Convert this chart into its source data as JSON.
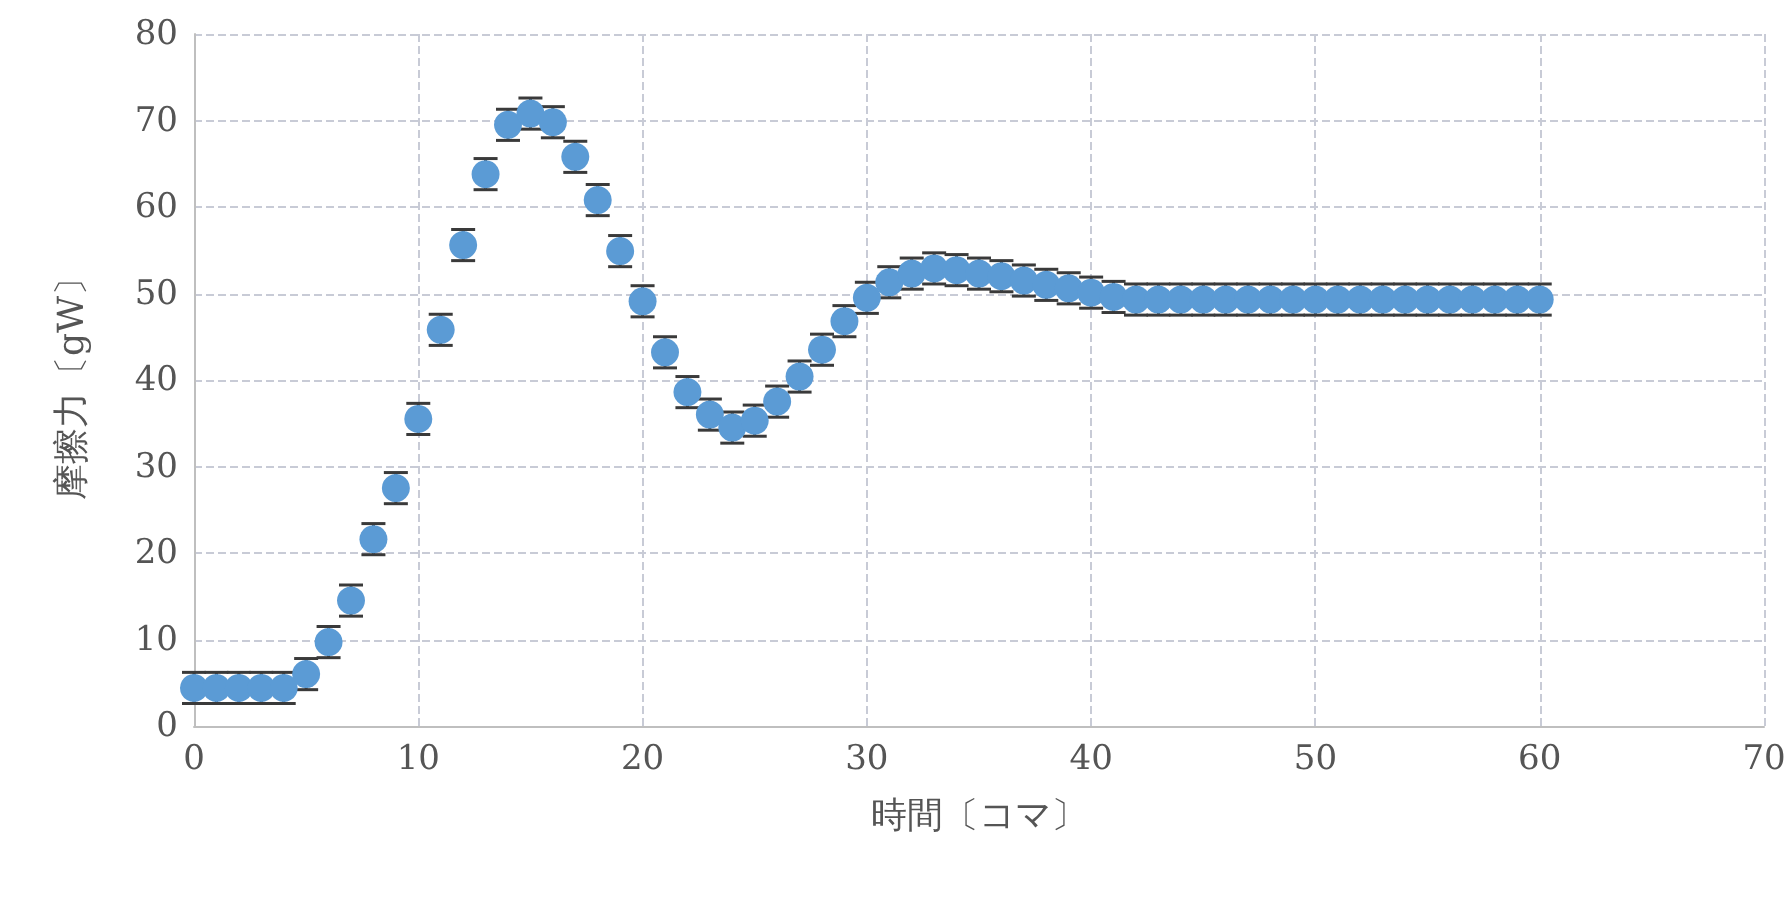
{
  "chart_data": {
    "type": "scatter",
    "xlabel": "時間〔コマ〕",
    "ylabel": "摩擦力〔gW〕",
    "x": [
      0,
      1,
      2,
      3,
      4,
      5,
      6,
      7,
      8,
      9,
      10,
      11,
      12,
      13,
      14,
      15,
      16,
      17,
      18,
      19,
      20,
      21,
      22,
      23,
      24,
      25,
      26,
      27,
      28,
      29,
      30,
      31,
      32,
      33,
      34,
      35,
      36,
      37,
      38,
      39,
      40,
      41,
      42,
      43,
      44,
      45,
      46,
      47,
      48,
      49,
      50,
      51,
      52,
      53,
      54,
      55,
      56,
      57,
      58,
      59,
      60
    ],
    "series": [
      {
        "color": "#5b9bd5",
        "values": [
          4.4,
          4.4,
          4.4,
          4.4,
          4.4,
          6,
          9.7,
          14.5,
          21.6,
          27.5,
          35.5,
          45.8,
          55.6,
          63.8,
          69.5,
          70.8,
          69.8,
          65.8,
          60.8,
          54.9,
          49.1,
          43.2,
          38.6,
          36,
          34.5,
          35.3,
          37.5,
          40.4,
          43.5,
          46.8,
          49.5,
          51.3,
          52.3,
          52.9,
          52.7,
          52.3,
          52,
          51.5,
          51,
          50.6,
          50.1,
          49.6,
          49.3,
          49.3,
          49.3,
          49.3,
          49.3,
          49.3,
          49.3,
          49.3,
          49.3,
          49.3,
          49.3,
          49.3,
          49.3,
          49.3,
          49.3,
          49.3,
          49.3,
          49.3,
          49.3
        ],
        "errors": [
          1.8,
          1.8,
          1.8,
          1.8,
          1.8,
          1.8,
          1.8,
          1.8,
          1.8,
          1.8,
          1.8,
          1.8,
          1.8,
          1.8,
          1.8,
          1.8,
          1.8,
          1.8,
          1.8,
          1.8,
          1.8,
          1.8,
          1.8,
          1.8,
          1.8,
          1.8,
          1.8,
          1.8,
          1.8,
          1.8,
          1.8,
          1.8,
          1.8,
          1.8,
          1.8,
          1.8,
          1.8,
          1.8,
          1.8,
          1.8,
          1.8,
          1.8,
          1.8,
          1.8,
          1.8,
          1.8,
          1.8,
          1.8,
          1.8,
          1.8,
          1.8,
          1.8,
          1.8,
          1.8,
          1.8,
          1.8,
          1.8,
          1.8,
          1.8,
          1.8,
          1.8
        ]
      }
    ],
    "xlim": [
      0,
      70
    ],
    "xticks": [
      0,
      10,
      20,
      30,
      40,
      50,
      60,
      70
    ],
    "ylim": [
      0,
      80
    ],
    "yticks": [
      0,
      10,
      20,
      30,
      40,
      50,
      60,
      70,
      80
    ],
    "grid": true,
    "marker": "circle"
  }
}
